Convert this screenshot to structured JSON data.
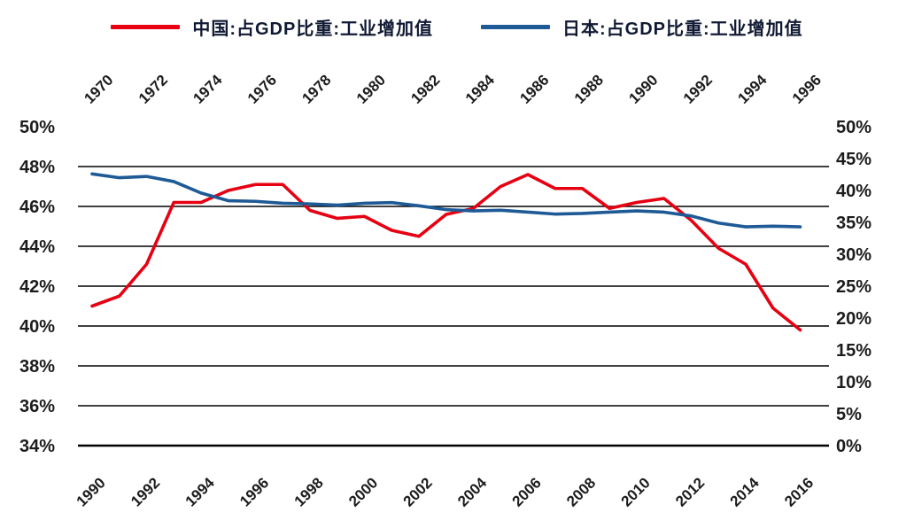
{
  "legend": {
    "text_color": "#111a33",
    "items": [
      {
        "id": "china",
        "label": "中国:占GDP比重:工业增加值",
        "color": "#e60012"
      },
      {
        "id": "japan",
        "label": "日本:占GDP比重:工业增加值",
        "color": "#1e5a96"
      }
    ]
  },
  "chart_data": {
    "type": "line",
    "title": "",
    "grid": {
      "show": true,
      "color": "#000000",
      "values": [
        48,
        46,
        44,
        42,
        40,
        38,
        36
      ]
    },
    "axes": {
      "y_left": {
        "range": [
          34,
          50
        ],
        "tick_labels": [
          "50%",
          "48%",
          "46%",
          "44%",
          "42%",
          "40%",
          "38%",
          "36%",
          "34%"
        ],
        "applies_to": "china"
      },
      "y_right": {
        "range": [
          0,
          50
        ],
        "tick_labels": [
          "50%",
          "45%",
          "40%",
          "35%",
          "30%",
          "25%",
          "20%",
          "15%",
          "10%",
          "5%",
          "0%"
        ],
        "applies_to": "japan"
      },
      "x_top": {
        "range": [
          1970,
          1996
        ],
        "tick_labels": [
          "1970",
          "1972",
          "1974",
          "1976",
          "1978",
          "1980",
          "1982",
          "1984",
          "1986",
          "1988",
          "1990",
          "1992",
          "1994",
          "1996"
        ],
        "applies_to": "japan"
      },
      "x_bottom": {
        "range": [
          1990,
          2016
        ],
        "tick_labels": [
          "1990",
          "1992",
          "1994",
          "1996",
          "1998",
          "2000",
          "2002",
          "2004",
          "2006",
          "2008",
          "2010",
          "2012",
          "2014",
          "2016"
        ],
        "applies_to": "china"
      }
    },
    "series": [
      {
        "id": "china",
        "name": "中国:占GDP比重:工业增加值",
        "color": "#e60012",
        "x_axis": "bottom",
        "y_axis": "left",
        "x": [
          1990,
          1991,
          1992,
          1993,
          1994,
          1995,
          1996,
          1997,
          1998,
          1999,
          2000,
          2001,
          2002,
          2003,
          2004,
          2005,
          2006,
          2007,
          2008,
          2009,
          2010,
          2011,
          2012,
          2013,
          2014,
          2015,
          2016
        ],
        "values": [
          41.0,
          41.5,
          43.1,
          46.2,
          46.2,
          46.8,
          47.1,
          47.1,
          45.8,
          45.4,
          45.5,
          44.8,
          44.5,
          45.6,
          45.9,
          47.0,
          47.6,
          46.9,
          46.9,
          45.9,
          46.2,
          46.4,
          45.3,
          43.9,
          43.1,
          40.9,
          39.8
        ]
      },
      {
        "id": "japan",
        "name": "日本:占GDP比重:工业增加值",
        "color": "#1e5a96",
        "x_axis": "top",
        "y_axis": "right",
        "x": [
          1970,
          1971,
          1972,
          1973,
          1974,
          1975,
          1976,
          1977,
          1978,
          1979,
          1980,
          1981,
          1982,
          1983,
          1984,
          1985,
          1986,
          1987,
          1988,
          1989,
          1990,
          1991,
          1992,
          1993,
          1994,
          1995,
          1996
        ],
        "values": [
          42.6,
          42.0,
          42.2,
          41.4,
          39.6,
          38.4,
          38.3,
          38.0,
          37.9,
          37.7,
          38.0,
          38.1,
          37.6,
          37.0,
          36.8,
          36.9,
          36.6,
          36.3,
          36.4,
          36.6,
          36.8,
          36.6,
          36.0,
          34.9,
          34.3,
          34.4,
          34.3
        ]
      }
    ]
  }
}
